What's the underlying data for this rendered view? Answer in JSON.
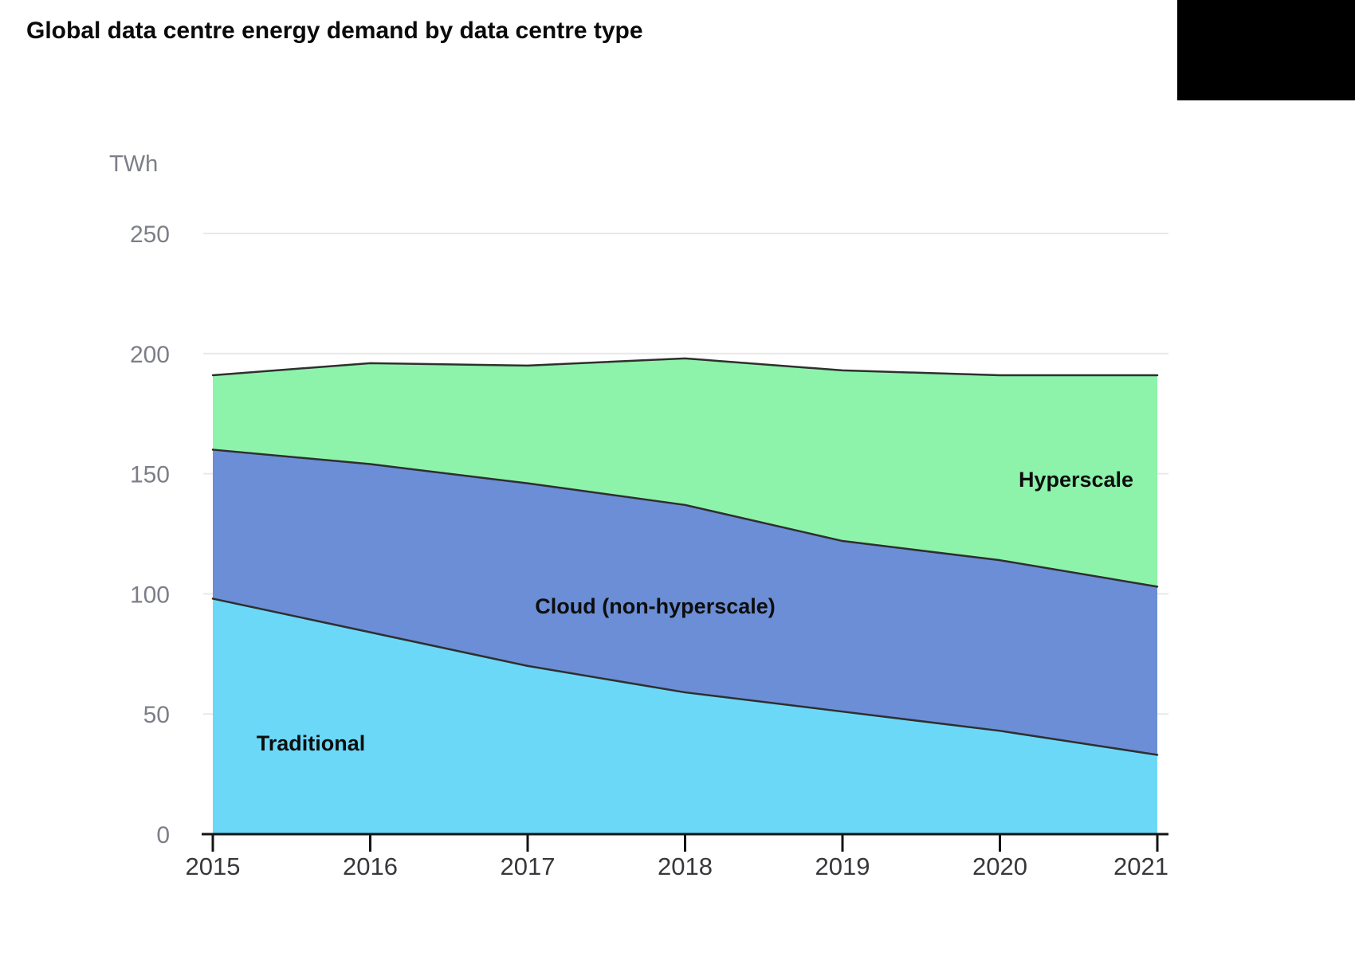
{
  "header": {
    "title": "Global data centre energy demand by data centre type"
  },
  "chart_data": {
    "type": "area",
    "stacked": true,
    "title": "Global data centre energy demand by data centre type",
    "unit": "TWh",
    "xlabel": "",
    "ylabel": "TWh",
    "x": [
      2015,
      2016,
      2017,
      2018,
      2019,
      2020,
      2021
    ],
    "series": [
      {
        "name": "Traditional",
        "values": [
          98,
          84,
          70,
          59,
          51,
          43,
          33
        ],
        "color": "#6cd8f8"
      },
      {
        "name": "Cloud (non-hyperscale)",
        "values": [
          62,
          70,
          76,
          78,
          71,
          71,
          70
        ],
        "color": "#6b8ed6"
      },
      {
        "name": "Hyperscale",
        "values": [
          31,
          42,
          49,
          61,
          71,
          77,
          88
        ],
        "color": "#8df3aa"
      }
    ],
    "stack_tops": {
      "traditional_top": [
        98,
        84,
        70,
        59,
        51,
        43,
        33
      ],
      "cloud_top": [
        160,
        154,
        146,
        137,
        122,
        114,
        103
      ],
      "total": [
        191,
        196,
        195,
        198,
        193,
        191,
        191
      ]
    },
    "ylim": [
      0,
      250
    ],
    "yticks": [
      0,
      50,
      100,
      150,
      200,
      250
    ],
    "grid": "horizontal",
    "legend": "inline-labels",
    "colors": {
      "boundary_line": "#2f2f2f",
      "axis": "#141414",
      "gridline": "#e9e9e9",
      "y_label": "#7c7f88",
      "x_label": "#37373c",
      "series_label": "#0e0e0e"
    }
  }
}
